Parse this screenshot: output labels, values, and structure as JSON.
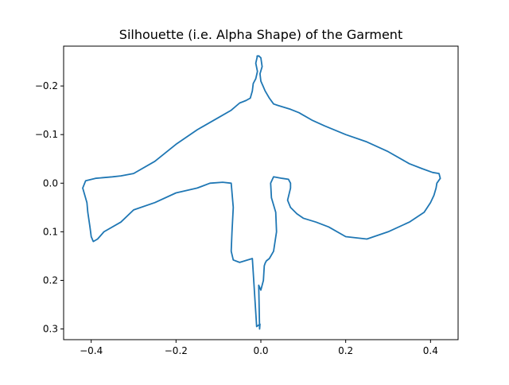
{
  "chart_data": {
    "type": "line",
    "title": "Silhouette (i.e. Alpha Shape) of the Garment",
    "xlabel": "",
    "ylabel": "",
    "xlim": [
      -0.465,
      0.465
    ],
    "ylim": [
      0.322,
      -0.282
    ],
    "y_inverted": true,
    "grid": false,
    "x_ticks": [
      -0.4,
      -0.2,
      0.0,
      0.2,
      0.4
    ],
    "x_tick_labels": [
      "−0.4",
      "−0.2",
      "0.0",
      "0.2",
      "0.4"
    ],
    "y_ticks": [
      -0.2,
      -0.1,
      0.0,
      0.1,
      0.2,
      0.3
    ],
    "y_tick_labels": [
      "−0.2",
      "−0.1",
      "0.0",
      "0.1",
      "0.2",
      "0.3"
    ],
    "series": [
      {
        "color": "#1f77b4",
        "x": [
          -0.01,
          -0.005,
          0.0,
          0.003,
          -0.002,
          0.0,
          0.005,
          0.01,
          0.02,
          0.03,
          0.04,
          0.07,
          0.09,
          0.12,
          0.15,
          0.2,
          0.25,
          0.3,
          0.35,
          0.38,
          0.405,
          0.42,
          0.423,
          0.415,
          0.413,
          0.408,
          0.4,
          0.385,
          0.35,
          0.3,
          0.25,
          0.2,
          0.16,
          0.13,
          0.1,
          0.085,
          0.07,
          0.063,
          0.07,
          0.07,
          0.065,
          0.05,
          0.03,
          0.023,
          0.025,
          0.035,
          0.037,
          0.03,
          0.02,
          0.013,
          0.01,
          0.008,
          0.006,
          0.0,
          -0.005,
          -0.003,
          -0.002,
          -0.01,
          -0.02,
          -0.05,
          -0.065,
          -0.07,
          -0.068,
          -0.065,
          -0.07,
          -0.09,
          -0.12,
          -0.15,
          -0.2,
          -0.25,
          -0.3,
          -0.33,
          -0.37,
          -0.385,
          -0.395,
          -0.4,
          -0.403,
          -0.408,
          -0.41,
          -0.42,
          -0.413,
          -0.39,
          -0.35,
          -0.33,
          -0.3,
          -0.25,
          -0.2,
          -0.15,
          -0.1,
          -0.07,
          -0.05,
          -0.035,
          -0.025,
          -0.02,
          -0.018,
          -0.012,
          -0.008,
          -0.012,
          -0.008,
          -0.01
        ],
        "y": [
          -0.26,
          -0.262,
          -0.258,
          -0.24,
          -0.225,
          -0.21,
          -0.2,
          -0.19,
          -0.175,
          -0.163,
          -0.16,
          -0.152,
          -0.145,
          -0.13,
          -0.118,
          -0.1,
          -0.085,
          -0.065,
          -0.04,
          -0.03,
          -0.022,
          -0.02,
          -0.01,
          -0.0,
          0.01,
          0.025,
          0.04,
          0.06,
          0.08,
          0.1,
          0.115,
          0.11,
          0.09,
          0.08,
          0.072,
          0.063,
          0.05,
          0.035,
          0.01,
          -0.0,
          -0.008,
          -0.01,
          -0.013,
          0.0,
          0.03,
          0.06,
          0.1,
          0.14,
          0.155,
          0.16,
          0.165,
          0.17,
          0.2,
          0.22,
          0.21,
          0.3,
          0.29,
          0.295,
          0.155,
          0.163,
          0.158,
          0.14,
          0.1,
          0.05,
          0.0,
          -0.002,
          0.0,
          0.01,
          0.02,
          0.04,
          0.055,
          0.08,
          0.1,
          0.115,
          0.12,
          0.11,
          0.09,
          0.06,
          0.04,
          0.01,
          -0.005,
          -0.01,
          -0.013,
          -0.015,
          -0.02,
          -0.045,
          -0.08,
          -0.11,
          -0.135,
          -0.15,
          -0.165,
          -0.17,
          -0.175,
          -0.19,
          -0.205,
          -0.215,
          -0.23,
          -0.247,
          -0.262,
          -0.26
        ]
      }
    ]
  }
}
